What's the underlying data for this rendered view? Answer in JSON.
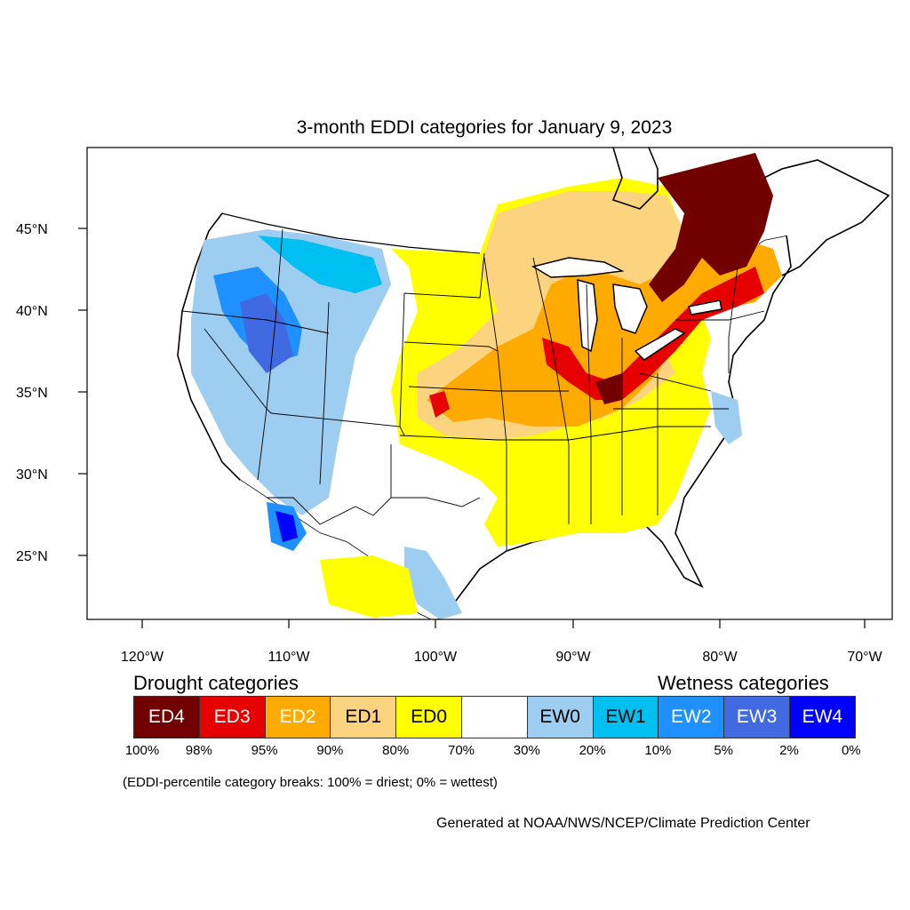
{
  "title": "3-month EDDI categories for January 9, 2023",
  "map": {
    "lat_ticks": [
      "45°N",
      "40°N",
      "35°N",
      "30°N",
      "25°N"
    ],
    "lon_ticks": [
      "120°W",
      "110°W",
      "100°W",
      "90°W",
      "80°W",
      "70°W"
    ]
  },
  "legend": {
    "drought_heading": "Drought categories",
    "wetness_heading": "Wetness categories",
    "categories": [
      {
        "label": "ED4",
        "color": "#730000",
        "text_color": "#ffffff"
      },
      {
        "label": "ED3",
        "color": "#e60000",
        "text_color": "#ffffff"
      },
      {
        "label": "ED2",
        "color": "#ffaa00",
        "text_color": "#ffffff"
      },
      {
        "label": "ED1",
        "color": "#fcd37f",
        "text_color": "#000000"
      },
      {
        "label": "ED0",
        "color": "#ffff00",
        "text_color": "#000000"
      },
      {
        "label": "",
        "color": "#ffffff",
        "text_color": "#000000"
      },
      {
        "label": "EW0",
        "color": "#9dcdf0",
        "text_color": "#000000"
      },
      {
        "label": "EW1",
        "color": "#00c0f2",
        "text_color": "#000000"
      },
      {
        "label": "EW2",
        "color": "#1e90ff",
        "text_color": "#ffffff"
      },
      {
        "label": "EW3",
        "color": "#4169e1",
        "text_color": "#ffffff"
      },
      {
        "label": "EW4",
        "color": "#0000ff",
        "text_color": "#ffffff"
      }
    ],
    "percentiles": [
      "100%",
      "98%",
      "95%",
      "90%",
      "80%",
      "70%",
      "30%",
      "20%",
      "10%",
      "5%",
      "2%",
      "0%"
    ]
  },
  "note": "(EDDI-percentile category breaks: 100% = driest; 0% = wettest)",
  "credit": "Generated at NOAA/NWS/NCEP/Climate Prediction Center"
}
